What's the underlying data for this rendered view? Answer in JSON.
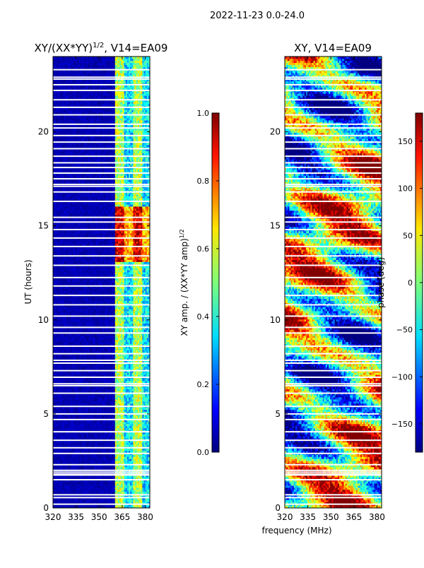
{
  "figure_title": "2022-11-23 0.0-24.0",
  "xlabel_shared": "frequency (MHz)",
  "chart_data": [
    {
      "type": "heatmap",
      "title": "XY/(XX*YY)^{1/2}, V14=EA09",
      "title_main": "XY/(XX*YY)",
      "title_sup": "1/2",
      "title_tail": ", V14=EA09",
      "xlabel": "frequency (MHz)",
      "ylabel": "UT (hours)",
      "xlim": [
        320,
        383
      ],
      "ylim": [
        0,
        24
      ],
      "x_ticks": [
        320,
        335,
        350,
        365,
        380
      ],
      "y_ticks": [
        0,
        5,
        10,
        15,
        20
      ],
      "colorbar": {
        "label": "XY amp. / (XX*YY amp)^{1/2}",
        "label_main": "XY amp. / (XX*YY amp)",
        "label_sup": "1/2",
        "range": [
          0.0,
          1.0
        ],
        "ticks": [
          "0.0",
          "0.2",
          "0.4",
          "0.6",
          "0.8",
          "1.0"
        ],
        "colormap": "jet"
      },
      "low_amplitude_band_mhz": [
        320,
        360
      ],
      "high_amplitude_band_mhz": [
        360,
        383
      ],
      "peak_time_range_hours": [
        13,
        16
      ]
    },
    {
      "type": "heatmap",
      "title": "XY, V14=EA09",
      "xlabel": "frequency (MHz)",
      "ylabel": "",
      "xlim": [
        320,
        383
      ],
      "ylim": [
        0,
        24
      ],
      "x_ticks": [
        320,
        335,
        350,
        365,
        380
      ],
      "y_ticks": [
        0,
        5,
        10,
        15,
        20
      ],
      "colorbar": {
        "label": "phase (deg)",
        "range": [
          -180,
          180
        ],
        "ticks": [
          "−150",
          "−100",
          "−50",
          "0",
          "50",
          "100",
          "150"
        ],
        "colormap": "jet"
      }
    }
  ],
  "flagged_gaps_hours": [
    0.2,
    0.55,
    0.7,
    1.5,
    1.75,
    1.8,
    1.9,
    2.0,
    2.3,
    2.9,
    3.2,
    3.6,
    4.05,
    4.7,
    5.0,
    5.4,
    6.1,
    6.5,
    6.6,
    6.95,
    7.3,
    7.7,
    7.85,
    8.2,
    8.6,
    9.3,
    9.6,
    10.2,
    10.8,
    11.3,
    11.8,
    12.25,
    12.9,
    13.4,
    13.9,
    14.35,
    14.8,
    15.2,
    15.45,
    16.3,
    16.8,
    17.1,
    17.2,
    17.5,
    17.8,
    18.1,
    18.35,
    18.7,
    19.1,
    19.45,
    19.8,
    20.2,
    20.4,
    20.9,
    21.3,
    21.7,
    22.2,
    22.5,
    22.8,
    22.9,
    23.3
  ]
}
